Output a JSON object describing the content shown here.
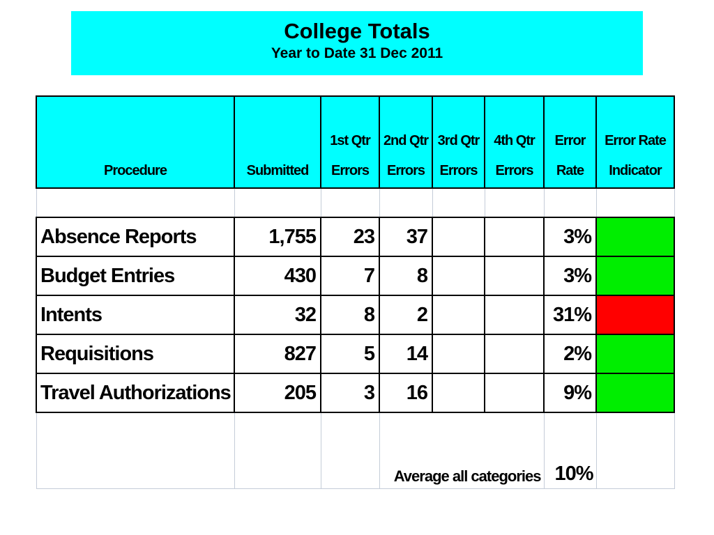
{
  "title": {
    "main": "College Totals",
    "sub": "Year to Date 31 Dec 2011"
  },
  "table": {
    "headers": {
      "procedure": "Procedure",
      "submitted": "Submitted",
      "q1": "1st Qtr Errors",
      "q2": "2nd Qtr Errors",
      "q3": "3rd Qtr Errors",
      "q4": "4th Qtr Errors",
      "rate": "Error Rate",
      "indicator": "Error Rate Indicator"
    },
    "rows": [
      {
        "procedure": "Absence Reports",
        "submitted": "1,755",
        "q1": "23",
        "q2": "37",
        "q3": "",
        "q4": "",
        "rate": "3%",
        "indicator_color": "#00ee00"
      },
      {
        "procedure": "Budget Entries",
        "submitted": "430",
        "q1": "7",
        "q2": "8",
        "q3": "",
        "q4": "",
        "rate": "3%",
        "indicator_color": "#00ee00"
      },
      {
        "procedure": "Intents",
        "submitted": "32",
        "q1": "8",
        "q2": "2",
        "q3": "",
        "q4": "",
        "rate": "31%",
        "indicator_color": "#ff0000"
      },
      {
        "procedure": "Requisitions",
        "submitted": "827",
        "q1": "5",
        "q2": "14",
        "q3": "",
        "q4": "",
        "rate": "2%",
        "indicator_color": "#00ee00"
      },
      {
        "procedure": "Travel Authorizations",
        "submitted": "205",
        "q1": "3",
        "q2": "16",
        "q3": "",
        "q4": "",
        "rate": "9%",
        "indicator_color": "#00ee00"
      }
    ],
    "footer": {
      "average_label": "Average all categories",
      "average_value": "10%"
    }
  }
}
